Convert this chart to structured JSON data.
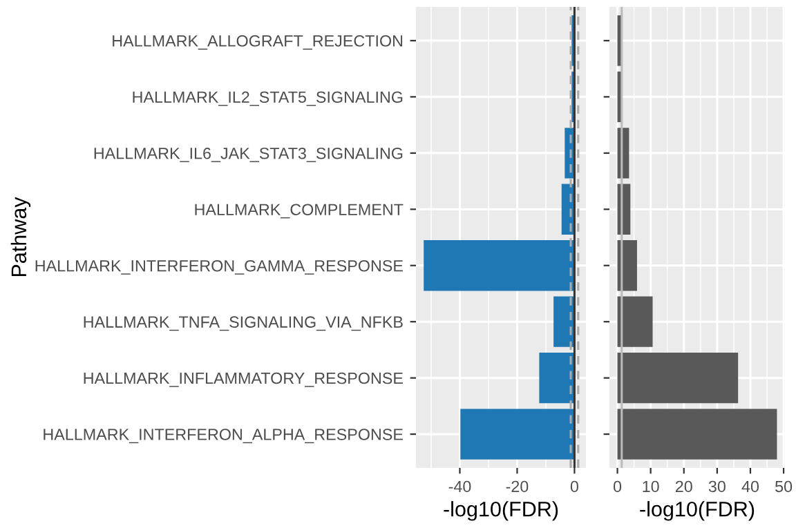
{
  "chart_data": [
    {
      "type": "bar",
      "orientation": "horizontal",
      "ylabel": "Pathway",
      "xlabel": "-log10(FDR)",
      "categories": [
        "HALLMARK_ALLOGRAFT_REJECTION",
        "HALLMARK_IL2_STAT5_SIGNALING",
        "HALLMARK_IL6_JAK_STAT3_SIGNALING",
        "HALLMARK_COMPLEMENT",
        "HALLMARK_INTERFERON_GAMMA_RESPONSE",
        "HALLMARK_TNFA_SIGNALING_VIA_NFKB",
        "HALLMARK_INFLAMMATORY_RESPONSE",
        "HALLMARK_INTERFERON_ALPHA_RESPONSE"
      ],
      "values": [
        -1.0,
        -1.0,
        -3.4,
        -4.5,
        -52.6,
        -7.3,
        -12.3,
        -39.8
      ],
      "color": "#1f78b4",
      "xlim": [
        -55.3,
        4.0
      ],
      "xticks": [
        {
          "value": -40,
          "label": "-40"
        },
        {
          "value": -20,
          "label": "-20"
        },
        0
      ],
      "grid": true,
      "ref_lines": [
        {
          "axis": "x",
          "value": 0,
          "color": "#333333",
          "line_style": "solid"
        },
        {
          "axis": "x",
          "value": -1.3,
          "color": "#aaaaaa",
          "line_style": "dashed"
        },
        {
          "axis": "x",
          "value": 1.3,
          "color": "#aaaaaa",
          "line_style": "dashed"
        }
      ]
    },
    {
      "type": "bar",
      "orientation": "horizontal",
      "xlabel": "-log10(FDR)",
      "categories": [
        null,
        null,
        null,
        null,
        null,
        null,
        null,
        null
      ],
      "values": [
        1.3,
        1.3,
        3.5,
        3.9,
        5.9,
        10.6,
        36.3,
        48.0
      ],
      "color": "#595959",
      "xlim": [
        -2.4,
        50.4
      ],
      "xticks": [
        0,
        10,
        20,
        30,
        40,
        50
      ],
      "grid": true,
      "tick_labels": "x",
      "ref_lines": [
        {
          "axis": "x",
          "value": 1.3,
          "color": "#bbbbbb",
          "line_style": "solid"
        }
      ]
    }
  ]
}
